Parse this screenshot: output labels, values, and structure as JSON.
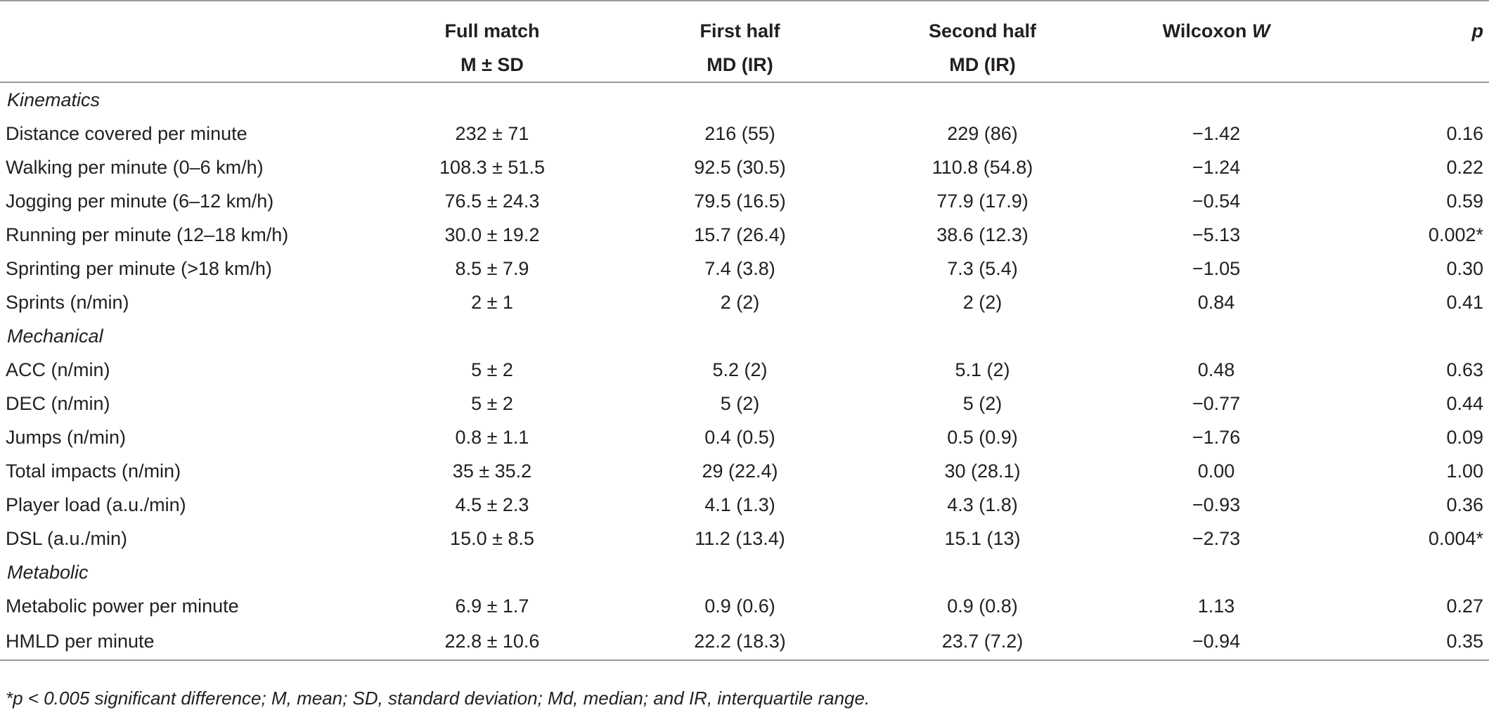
{
  "header": {
    "full_match_line1": "Full match",
    "full_match_line2": "M ± SD",
    "first_half_line1": "First half",
    "first_half_line2": "MD (IR)",
    "second_half_line1": "Second half",
    "second_half_line2": "MD (IR)",
    "wilcoxon_prefix": "Wilcoxon ",
    "wilcoxon_symbol": "W",
    "p": "p"
  },
  "sections": {
    "kinematics": "Kinematics",
    "mechanical": "Mechanical",
    "metabolic": "Metabolic"
  },
  "rows": [
    {
      "label": "Distance covered per minute",
      "full": "232 ± 71",
      "first": "216 (55)",
      "second": "229 (86)",
      "w": "−1.42",
      "p": "0.16"
    },
    {
      "label": "Walking per minute (0–6 km/h)",
      "full": "108.3 ± 51.5",
      "first": "92.5 (30.5)",
      "second": "110.8 (54.8)",
      "w": "−1.24",
      "p": "0.22"
    },
    {
      "label": "Jogging per minute (6–12 km/h)",
      "full": "76.5 ± 24.3",
      "first": "79.5 (16.5)",
      "second": "77.9 (17.9)",
      "w": "−0.54",
      "p": "0.59"
    },
    {
      "label": "Running per minute (12–18 km/h)",
      "full": "30.0 ± 19.2",
      "first": "15.7 (26.4)",
      "second": "38.6 (12.3)",
      "w": "−5.13",
      "p": "0.002*"
    },
    {
      "label": "Sprinting per minute (>18 km/h)",
      "full": "8.5 ± 7.9",
      "first": "7.4 (3.8)",
      "second": "7.3 (5.4)",
      "w": "−1.05",
      "p": "0.30"
    },
    {
      "label": "Sprints (n/min)",
      "full": "2 ± 1",
      "first": "2 (2)",
      "second": "2 (2)",
      "w": "0.84",
      "p": "0.41"
    },
    {
      "label": "ACC (n/min)",
      "full": "5 ± 2",
      "first": "5.2 (2)",
      "second": "5.1 (2)",
      "w": "0.48",
      "p": "0.63"
    },
    {
      "label": "DEC (n/min)",
      "full": "5 ± 2",
      "first": "5 (2)",
      "second": "5 (2)",
      "w": "−0.77",
      "p": "0.44"
    },
    {
      "label": "Jumps (n/min)",
      "full": "0.8 ± 1.1",
      "first": "0.4 (0.5)",
      "second": "0.5 (0.9)",
      "w": "−1.76",
      "p": "0.09"
    },
    {
      "label": "Total impacts (n/min)",
      "full": "35 ± 35.2",
      "first": "29 (22.4)",
      "second": "30 (28.1)",
      "w": "0.00",
      "p": "1.00"
    },
    {
      "label": "Player load (a.u./min)",
      "full": "4.5 ± 2.3",
      "first": "4.1 (1.3)",
      "second": "4.3 (1.8)",
      "w": "−0.93",
      "p": "0.36"
    },
    {
      "label": "DSL (a.u./min)",
      "full": "15.0 ± 8.5",
      "first": "11.2 (13.4)",
      "second": "15.1 (13)",
      "w": "−2.73",
      "p": "0.004*"
    },
    {
      "label": "Metabolic power per minute",
      "full": "6.9 ± 1.7",
      "first": "0.9 (0.6)",
      "second": "0.9 (0.8)",
      "w": "1.13",
      "p": "0.27"
    },
    {
      "label": "HMLD per minute",
      "full": "22.8 ± 10.6",
      "first": "22.2 (18.3)",
      "second": "23.7 (7.2)",
      "w": "−0.94",
      "p": "0.35"
    }
  ],
  "footnote": "*p < 0.005 significant difference; M, mean; SD, standard deviation; Md, median; and IR, interquartile range.",
  "colors": {
    "text": "#231f20",
    "rule": "#9a9a9a"
  }
}
